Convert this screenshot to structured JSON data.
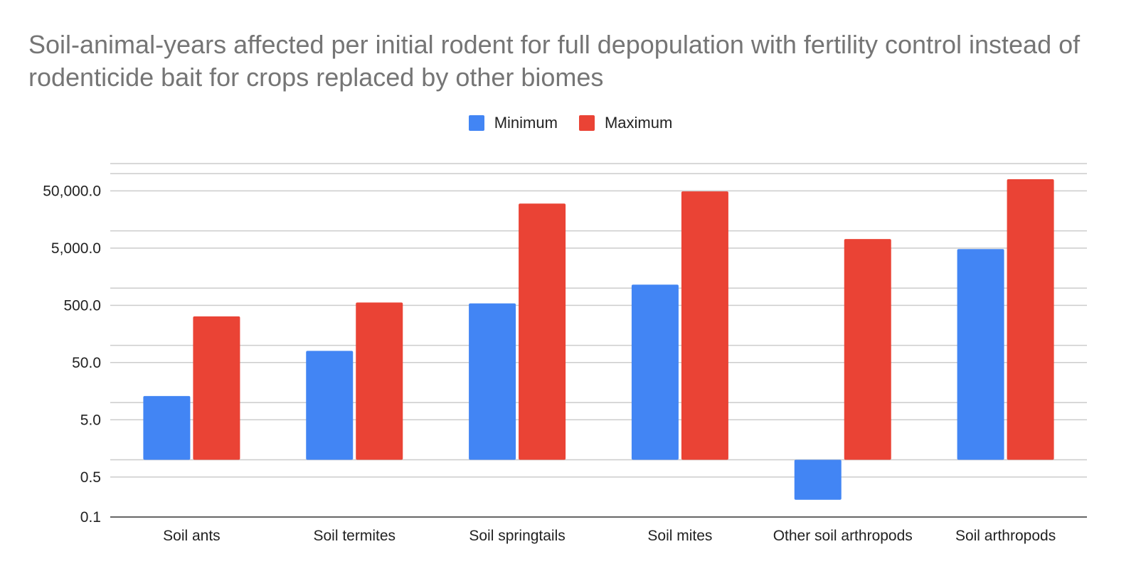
{
  "chart_data": {
    "type": "bar",
    "title": "Soil-animal-years affected per initial rodent for full depopulation with fertility control instead of rodenticide bait for crops replaced by other biomes",
    "xlabel": "",
    "ylabel": "",
    "yscale": "log",
    "categories": [
      "Soil ants",
      "Soil termites",
      "Soil springtails",
      "Soil mites",
      "Other soil arthropods",
      "Soil arthropods"
    ],
    "series": [
      {
        "name": "Minimum",
        "color": "#4285f4",
        "values": [
          13,
          80,
          540,
          1150,
          0.2,
          4800
        ]
      },
      {
        "name": "Maximum",
        "color": "#ea4335",
        "values": [
          320,
          560,
          30000,
          49000,
          7200,
          80000
        ]
      }
    ],
    "baseline": 1,
    "ylim": [
      0.1,
      150000
    ],
    "ticks": [
      {
        "value": 0.1,
        "label": "0.1"
      },
      {
        "value": 0.5,
        "label": "0.5"
      },
      {
        "value": 5,
        "label": "5.0"
      },
      {
        "value": 50,
        "label": "50.0"
      },
      {
        "value": 500,
        "label": "500.0"
      },
      {
        "value": 5000,
        "label": "5,000.0"
      },
      {
        "value": 50000,
        "label": "50,000.0"
      }
    ],
    "minor_gridlines": [
      1,
      10,
      100,
      1000,
      10000,
      100000
    ],
    "legend_position": "top-center",
    "grid": true
  }
}
